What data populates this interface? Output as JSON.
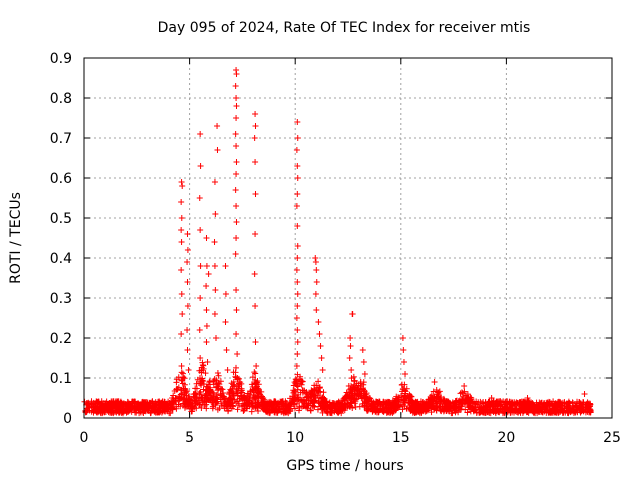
{
  "chart_data": {
    "type": "scatter",
    "title": "Day 095 of 2024, Rate Of TEC Index for receiver mtis",
    "xlabel": "GPS time / hours",
    "ylabel": "ROTI / TECUs",
    "xlim": [
      0,
      25
    ],
    "ylim": [
      0,
      0.9
    ],
    "x_ticks": [
      "0",
      "5",
      "10",
      "15",
      "20",
      "25"
    ],
    "y_ticks": [
      "0",
      "0.1",
      "0.2",
      "0.3",
      "0.4",
      "0.5",
      "0.6",
      "0.7",
      "0.8",
      "0.9"
    ],
    "grid": true,
    "marker": "+",
    "series": [
      {
        "color": "#ff0000",
        "points": [
          [
            4.62,
            0.59
          ],
          [
            4.65,
            0.58
          ],
          [
            4.6,
            0.54
          ],
          [
            4.63,
            0.5
          ],
          [
            4.6,
            0.47
          ],
          [
            4.62,
            0.44
          ],
          [
            4.6,
            0.37
          ],
          [
            4.63,
            0.31
          ],
          [
            4.65,
            0.26
          ],
          [
            4.6,
            0.21
          ],
          [
            4.62,
            0.13
          ],
          [
            4.9,
            0.46
          ],
          [
            4.92,
            0.42
          ],
          [
            4.88,
            0.39
          ],
          [
            4.9,
            0.34
          ],
          [
            4.92,
            0.28
          ],
          [
            4.88,
            0.22
          ],
          [
            4.9,
            0.17
          ],
          [
            4.95,
            0.12
          ],
          [
            5.5,
            0.71
          ],
          [
            5.52,
            0.63
          ],
          [
            5.48,
            0.55
          ],
          [
            5.5,
            0.47
          ],
          [
            5.52,
            0.38
          ],
          [
            5.5,
            0.3
          ],
          [
            5.48,
            0.22
          ],
          [
            5.5,
            0.15
          ],
          [
            5.8,
            0.45
          ],
          [
            5.82,
            0.38
          ],
          [
            5.78,
            0.33
          ],
          [
            5.8,
            0.27
          ],
          [
            5.82,
            0.23
          ],
          [
            5.8,
            0.19
          ],
          [
            5.85,
            0.14
          ],
          [
            5.9,
            0.36
          ],
          [
            6.2,
            0.59
          ],
          [
            6.22,
            0.51
          ],
          [
            6.18,
            0.44
          ],
          [
            6.2,
            0.38
          ],
          [
            6.22,
            0.32
          ],
          [
            6.2,
            0.26
          ],
          [
            6.25,
            0.2
          ],
          [
            6.3,
            0.73
          ],
          [
            6.32,
            0.67
          ],
          [
            6.7,
            0.38
          ],
          [
            6.72,
            0.31
          ],
          [
            6.7,
            0.24
          ],
          [
            6.75,
            0.17
          ],
          [
            6.8,
            0.12
          ],
          [
            7.2,
            0.87
          ],
          [
            7.22,
            0.86
          ],
          [
            7.18,
            0.83
          ],
          [
            7.2,
            0.8
          ],
          [
            7.22,
            0.78
          ],
          [
            7.2,
            0.75
          ],
          [
            7.18,
            0.71
          ],
          [
            7.2,
            0.68
          ],
          [
            7.22,
            0.64
          ],
          [
            7.2,
            0.61
          ],
          [
            7.18,
            0.57
          ],
          [
            7.2,
            0.53
          ],
          [
            7.22,
            0.49
          ],
          [
            7.2,
            0.45
          ],
          [
            7.18,
            0.41
          ],
          [
            7.2,
            0.32
          ],
          [
            7.22,
            0.27
          ],
          [
            7.2,
            0.21
          ],
          [
            7.25,
            0.16
          ],
          [
            8.1,
            0.76
          ],
          [
            8.12,
            0.73
          ],
          [
            8.08,
            0.7
          ],
          [
            8.1,
            0.64
          ],
          [
            8.12,
            0.56
          ],
          [
            8.1,
            0.46
          ],
          [
            8.08,
            0.36
          ],
          [
            8.1,
            0.28
          ],
          [
            8.12,
            0.19
          ],
          [
            8.15,
            0.13
          ],
          [
            10.1,
            0.74
          ],
          [
            10.12,
            0.7
          ],
          [
            10.08,
            0.67
          ],
          [
            10.1,
            0.63
          ],
          [
            10.12,
            0.6
          ],
          [
            10.1,
            0.56
          ],
          [
            10.08,
            0.53
          ],
          [
            10.1,
            0.48
          ],
          [
            10.12,
            0.43
          ],
          [
            10.1,
            0.4
          ],
          [
            10.08,
            0.37
          ],
          [
            10.1,
            0.34
          ],
          [
            10.12,
            0.31
          ],
          [
            10.1,
            0.28
          ],
          [
            10.08,
            0.25
          ],
          [
            10.1,
            0.22
          ],
          [
            10.12,
            0.19
          ],
          [
            10.1,
            0.16
          ],
          [
            10.08,
            0.13
          ],
          [
            10.95,
            0.4
          ],
          [
            10.98,
            0.39
          ],
          [
            11.0,
            0.37
          ],
          [
            11.02,
            0.34
          ],
          [
            10.98,
            0.31
          ],
          [
            11.0,
            0.27
          ],
          [
            11.1,
            0.24
          ],
          [
            11.15,
            0.21
          ],
          [
            11.2,
            0.18
          ],
          [
            11.25,
            0.15
          ],
          [
            11.3,
            0.12
          ],
          [
            12.6,
            0.2
          ],
          [
            12.62,
            0.18
          ],
          [
            12.58,
            0.15
          ],
          [
            12.65,
            0.12
          ],
          [
            12.7,
            0.26
          ],
          [
            12.72,
            0.26
          ],
          [
            13.2,
            0.17
          ],
          [
            13.25,
            0.14
          ],
          [
            13.3,
            0.11
          ],
          [
            15.1,
            0.2
          ],
          [
            15.12,
            0.17
          ],
          [
            15.15,
            0.14
          ],
          [
            15.2,
            0.11
          ],
          [
            16.6,
            0.09
          ],
          [
            16.7,
            0.07
          ],
          [
            18.0,
            0.08
          ],
          [
            19.3,
            0.05
          ],
          [
            21.0,
            0.05
          ],
          [
            23.7,
            0.06
          ]
        ]
      }
    ]
  }
}
